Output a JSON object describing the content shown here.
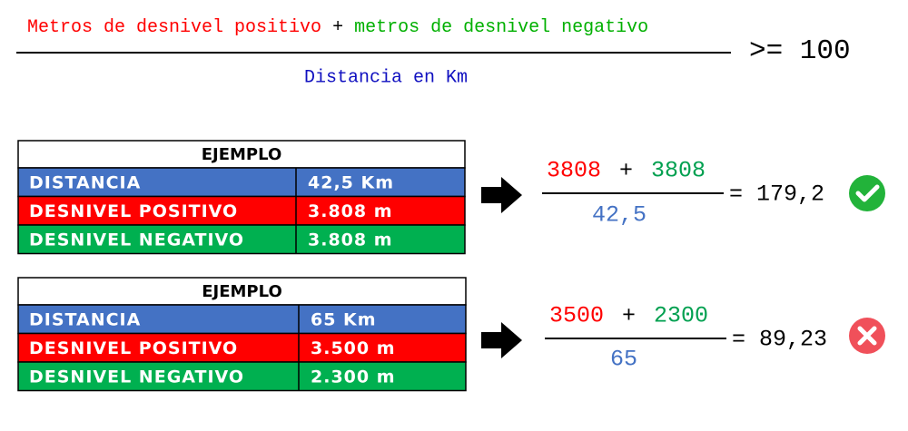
{
  "formula": {
    "positive": "Metros de desnivel positivo",
    "plus": "+",
    "negative": "metros de desnivel negativo",
    "denominator": "Distancia en Km",
    "condition": ">= 100"
  },
  "examples": [
    {
      "title": "EJEMPLO",
      "rows": [
        [
          "DISTANCIA",
          "42,5 Km"
        ],
        [
          "DESNIVEL POSITIVO",
          "3.808 m"
        ],
        [
          "DESNIVEL NEGATIVO",
          "3.808 m"
        ]
      ],
      "calculation": {
        "positive": "3808",
        "plus": "+",
        "negative": "3808",
        "denominator": "42,5",
        "result": "= 179,2"
      }
    },
    {
      "title": "EJEMPLO",
      "rows": [
        [
          "DISTANCIA",
          "65 Km"
        ],
        [
          "DESNIVEL POSITIVO",
          "3.500 m"
        ],
        [
          "DESNIVEL NEGATIVO",
          "2.300 m"
        ]
      ],
      "calculation": {
        "positive": "3500",
        "plus": "+",
        "negative": "2300",
        "denominator": "65",
        "result": "= 89,23"
      }
    }
  ]
}
